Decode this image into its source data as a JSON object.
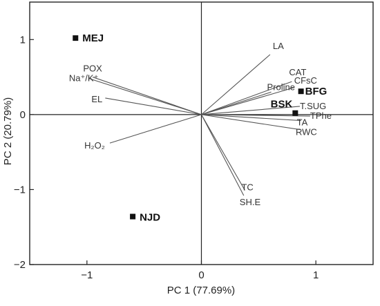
{
  "chart_data": {
    "type": "scatter",
    "title": "",
    "xlabel": "PC 1 (77.69%)",
    "ylabel": "PC 2 (20.79%)",
    "xlim": [
      -1.5,
      1.5
    ],
    "ylim": [
      -2,
      1.5
    ],
    "x_ticks": [
      -1,
      0,
      1
    ],
    "x_tick_labels": [
      "−1",
      "0",
      "1"
    ],
    "y_ticks": [
      -2,
      -1,
      0,
      1
    ],
    "y_tick_labels": [
      "−2",
      "−1",
      "0",
      "1"
    ],
    "grid": false,
    "zero_lines": true,
    "colors": {
      "axis": "#222222",
      "loading": "#555555",
      "score": "#111111"
    },
    "loadings": [
      {
        "label": "LA",
        "x": 0.6,
        "y": 0.8
      },
      {
        "label": "CAT",
        "x": 0.79,
        "y": 0.44
      },
      {
        "label": "CFsC",
        "x": 0.81,
        "y": 0.36
      },
      {
        "label": "Proline",
        "x": 0.61,
        "y": 0.3
      },
      {
        "label": "T.SUG",
        "x": 0.86,
        "y": 0.11
      },
      {
        "label": "TPhe",
        "x": 0.95,
        "y": -0.02
      },
      {
        "label": "TA",
        "x": 0.87,
        "y": -0.08
      },
      {
        "label": "RWC",
        "x": 0.86,
        "y": -0.2
      },
      {
        "label": "TC",
        "x": 0.38,
        "y": -1.01
      },
      {
        "label": "SH.E",
        "x": 0.37,
        "y": -1.08
      },
      {
        "label": "POX",
        "x": -0.95,
        "y": 0.5
      },
      {
        "label": "Na⁺/K⁺",
        "x": -0.98,
        "y": 0.48
      },
      {
        "label": "EL",
        "x": -0.84,
        "y": 0.22
      },
      {
        "label": "H₂O₂",
        "x": -0.8,
        "y": -0.38
      }
    ],
    "scores": [
      {
        "label": "MEJ",
        "x": -1.1,
        "y": 1.02
      },
      {
        "label": "BFG",
        "x": 0.87,
        "y": 0.31
      },
      {
        "label": "BSK",
        "x": 0.82,
        "y": 0.02
      },
      {
        "label": "NJD",
        "x": -0.6,
        "y": -1.36
      }
    ]
  }
}
